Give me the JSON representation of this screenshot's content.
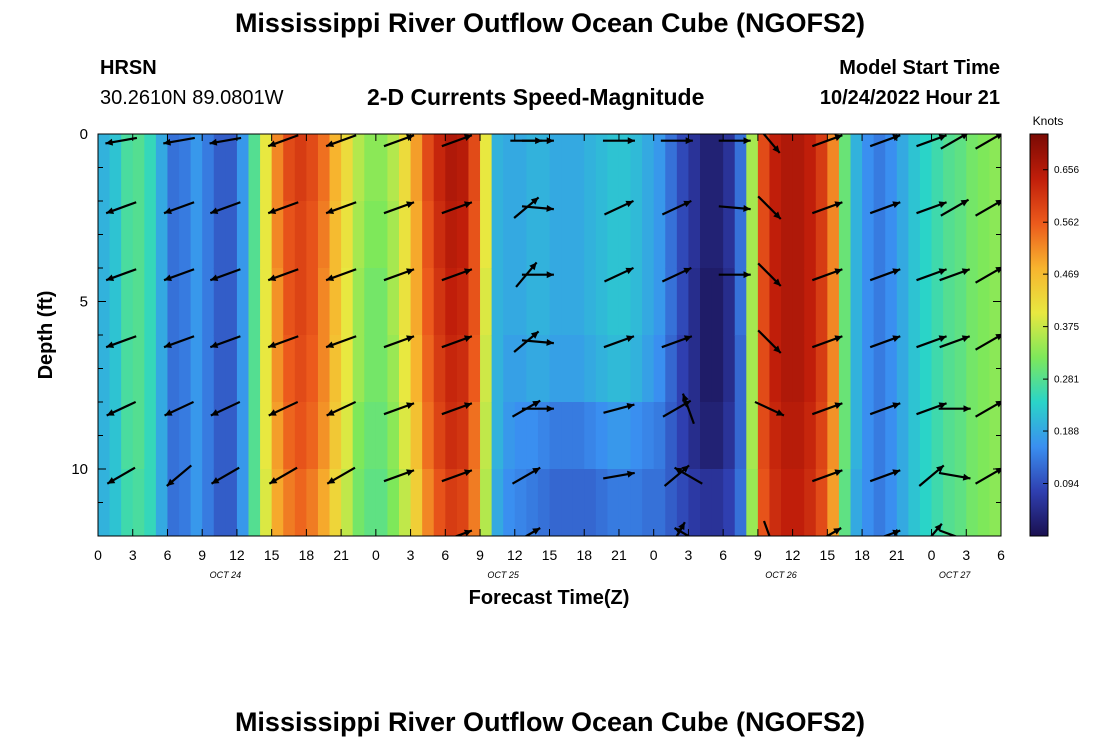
{
  "title": "Mississippi River Outflow Ocean Cube (NGOFS2)",
  "title_repeat": "Mississippi River Outflow Ocean Cube (NGOFS2)",
  "station": {
    "code": "HRSN",
    "coords": "30.2610N  89.0801W"
  },
  "model_start": {
    "label": "Model Start Time",
    "value": "10/24/2022 Hour 21"
  },
  "chart_data": {
    "type": "heatmap",
    "title": "2-D Currents Speed-Magnitude",
    "xlabel": "Forecast Time(Z)",
    "ylabel": "Depth (ft)",
    "x_range_hours": [
      0,
      78
    ],
    "y_range_ft": [
      0,
      12
    ],
    "y_invert": true,
    "x_tick_labels": [
      "0",
      "3",
      "6",
      "9",
      "12",
      "15",
      "18",
      "21",
      "0",
      "3",
      "6",
      "9",
      "12",
      "15",
      "18",
      "21",
      "0",
      "3",
      "6",
      "9",
      "12",
      "15",
      "18",
      "21",
      "0",
      "3",
      "6"
    ],
    "y_ticks": [
      0,
      5,
      10
    ],
    "y_tick_labels": [
      "0",
      "5",
      "10"
    ],
    "date_labels": [
      {
        "label": "OCT 24",
        "hour": 11
      },
      {
        "label": "OCT 25",
        "hour": 35
      },
      {
        "label": "OCT 26",
        "hour": 59
      },
      {
        "label": "OCT 27",
        "hour": 74
      }
    ],
    "colorbar": {
      "units": "Knots",
      "min": 0.0,
      "max": 0.72,
      "ticks": [
        0.094,
        0.188,
        0.281,
        0.375,
        0.469,
        0.562,
        0.656
      ],
      "tick_labels": [
        "0.094",
        "0.188",
        "0.281",
        "0.375",
        "0.469",
        "0.562",
        "0.656"
      ],
      "colors": [
        "#1a1050",
        "#2f3fb0",
        "#3a8ff0",
        "#2ad4c8",
        "#7ee85a",
        "#e8e840",
        "#f7b42e",
        "#ec5a1c",
        "#c01e0a",
        "#7a0a04"
      ]
    },
    "speed_columns": [
      {
        "hour": 0,
        "values": [
          0.2,
          0.2,
          0.2,
          0.2,
          0.2,
          0.2,
          0.2
        ]
      },
      {
        "hour": 1,
        "values": [
          0.22,
          0.22,
          0.22,
          0.22,
          0.22,
          0.22,
          0.21
        ]
      },
      {
        "hour": 2,
        "values": [
          0.27,
          0.27,
          0.27,
          0.27,
          0.27,
          0.26,
          0.26
        ]
      },
      {
        "hour": 3,
        "values": [
          0.28,
          0.28,
          0.28,
          0.28,
          0.28,
          0.27,
          0.27
        ]
      },
      {
        "hour": 4,
        "values": [
          0.25,
          0.25,
          0.25,
          0.25,
          0.25,
          0.25,
          0.24
        ]
      },
      {
        "hour": 5,
        "values": [
          0.19,
          0.19,
          0.19,
          0.19,
          0.19,
          0.19,
          0.19
        ]
      },
      {
        "hour": 6,
        "values": [
          0.13,
          0.13,
          0.13,
          0.13,
          0.13,
          0.13,
          0.13
        ]
      },
      {
        "hour": 7,
        "values": [
          0.14,
          0.14,
          0.14,
          0.14,
          0.14,
          0.14,
          0.14
        ]
      },
      {
        "hour": 8,
        "values": [
          0.17,
          0.17,
          0.17,
          0.17,
          0.17,
          0.17,
          0.17
        ]
      },
      {
        "hour": 9,
        "values": [
          0.14,
          0.14,
          0.14,
          0.14,
          0.14,
          0.14,
          0.14
        ]
      },
      {
        "hour": 10,
        "values": [
          0.11,
          0.11,
          0.11,
          0.11,
          0.11,
          0.11,
          0.11
        ]
      },
      {
        "hour": 11,
        "values": [
          0.11,
          0.11,
          0.11,
          0.11,
          0.11,
          0.11,
          0.11
        ]
      },
      {
        "hour": 12,
        "values": [
          0.17,
          0.17,
          0.17,
          0.17,
          0.17,
          0.17,
          0.17
        ]
      },
      {
        "hour": 13,
        "values": [
          0.28,
          0.28,
          0.28,
          0.28,
          0.28,
          0.28,
          0.27
        ]
      },
      {
        "hour": 14,
        "values": [
          0.4,
          0.4,
          0.4,
          0.4,
          0.4,
          0.39,
          0.38
        ]
      },
      {
        "hour": 15,
        "values": [
          0.52,
          0.52,
          0.51,
          0.51,
          0.5,
          0.49,
          0.48
        ]
      },
      {
        "hour": 16,
        "values": [
          0.58,
          0.57,
          0.57,
          0.56,
          0.55,
          0.53,
          0.52
        ]
      },
      {
        "hour": 17,
        "values": [
          0.6,
          0.59,
          0.59,
          0.58,
          0.57,
          0.55,
          0.53
        ]
      },
      {
        "hour": 18,
        "values": [
          0.58,
          0.57,
          0.57,
          0.56,
          0.55,
          0.53,
          0.51
        ]
      },
      {
        "hour": 19,
        "values": [
          0.54,
          0.53,
          0.52,
          0.52,
          0.51,
          0.49,
          0.47
        ]
      },
      {
        "hour": 20,
        "values": [
          0.48,
          0.47,
          0.47,
          0.46,
          0.45,
          0.43,
          0.42
        ]
      },
      {
        "hour": 21,
        "values": [
          0.42,
          0.41,
          0.4,
          0.4,
          0.39,
          0.37,
          0.35
        ]
      },
      {
        "hour": 22,
        "values": [
          0.36,
          0.35,
          0.34,
          0.34,
          0.32,
          0.31,
          0.3
        ]
      },
      {
        "hour": 23,
        "values": [
          0.33,
          0.32,
          0.31,
          0.31,
          0.3,
          0.29,
          0.28
        ]
      },
      {
        "hour": 24,
        "values": [
          0.33,
          0.32,
          0.31,
          0.31,
          0.3,
          0.29,
          0.28
        ]
      },
      {
        "hour": 25,
        "values": [
          0.36,
          0.35,
          0.35,
          0.34,
          0.33,
          0.32,
          0.31
        ]
      },
      {
        "hour": 26,
        "values": [
          0.42,
          0.41,
          0.41,
          0.4,
          0.39,
          0.37,
          0.36
        ]
      },
      {
        "hour": 27,
        "values": [
          0.5,
          0.49,
          0.49,
          0.48,
          0.46,
          0.44,
          0.43
        ]
      },
      {
        "hour": 28,
        "values": [
          0.58,
          0.57,
          0.56,
          0.55,
          0.54,
          0.52,
          0.5
        ]
      },
      {
        "hour": 29,
        "values": [
          0.63,
          0.62,
          0.61,
          0.6,
          0.59,
          0.57,
          0.55
        ]
      },
      {
        "hour": 30,
        "values": [
          0.66,
          0.65,
          0.64,
          0.63,
          0.62,
          0.6,
          0.58
        ]
      },
      {
        "hour": 31,
        "values": [
          0.65,
          0.64,
          0.63,
          0.62,
          0.61,
          0.59,
          0.57
        ]
      },
      {
        "hour": 32,
        "values": [
          0.58,
          0.57,
          0.57,
          0.56,
          0.54,
          0.53,
          0.51
        ]
      },
      {
        "hour": 33,
        "values": [
          0.4,
          0.4,
          0.39,
          0.38,
          0.37,
          0.36,
          0.35
        ]
      },
      {
        "hour": 34,
        "values": [
          0.2,
          0.2,
          0.2,
          0.2,
          0.2,
          0.19,
          0.18
        ]
      },
      {
        "hour": 35,
        "values": [
          0.19,
          0.19,
          0.19,
          0.18,
          0.17,
          0.16,
          0.15
        ]
      },
      {
        "hour": 36,
        "values": [
          0.19,
          0.19,
          0.19,
          0.18,
          0.16,
          0.15,
          0.14
        ]
      },
      {
        "hour": 37,
        "values": [
          0.2,
          0.2,
          0.2,
          0.19,
          0.16,
          0.14,
          0.13
        ]
      },
      {
        "hour": 38,
        "values": [
          0.2,
          0.2,
          0.2,
          0.19,
          0.15,
          0.13,
          0.12
        ]
      },
      {
        "hour": 39,
        "values": [
          0.19,
          0.19,
          0.19,
          0.18,
          0.14,
          0.12,
          0.11
        ]
      },
      {
        "hour": 40,
        "values": [
          0.19,
          0.19,
          0.19,
          0.18,
          0.14,
          0.12,
          0.11
        ]
      },
      {
        "hour": 41,
        "values": [
          0.19,
          0.19,
          0.19,
          0.18,
          0.14,
          0.12,
          0.11
        ]
      },
      {
        "hour": 42,
        "values": [
          0.2,
          0.2,
          0.2,
          0.19,
          0.15,
          0.12,
          0.11
        ]
      },
      {
        "hour": 43,
        "values": [
          0.21,
          0.21,
          0.21,
          0.2,
          0.16,
          0.13,
          0.12
        ]
      },
      {
        "hour": 44,
        "values": [
          0.22,
          0.22,
          0.22,
          0.21,
          0.17,
          0.14,
          0.13
        ]
      },
      {
        "hour": 45,
        "values": [
          0.22,
          0.22,
          0.22,
          0.21,
          0.17,
          0.14,
          0.13
        ]
      },
      {
        "hour": 46,
        "values": [
          0.21,
          0.21,
          0.21,
          0.2,
          0.16,
          0.14,
          0.13
        ]
      },
      {
        "hour": 47,
        "values": [
          0.19,
          0.19,
          0.19,
          0.18,
          0.15,
          0.13,
          0.13
        ]
      },
      {
        "hour": 48,
        "values": [
          0.17,
          0.17,
          0.17,
          0.16,
          0.14,
          0.13,
          0.13
        ]
      },
      {
        "hour": 49,
        "values": [
          0.13,
          0.13,
          0.13,
          0.12,
          0.11,
          0.11,
          0.12
        ]
      },
      {
        "hour": 50,
        "values": [
          0.09,
          0.09,
          0.09,
          0.08,
          0.08,
          0.09,
          0.11
        ]
      },
      {
        "hour": 51,
        "values": [
          0.06,
          0.06,
          0.05,
          0.05,
          0.05,
          0.07,
          0.11
        ]
      },
      {
        "hour": 52,
        "values": [
          0.03,
          0.03,
          0.02,
          0.02,
          0.03,
          0.06,
          0.1
        ]
      },
      {
        "hour": 53,
        "values": [
          0.03,
          0.03,
          0.02,
          0.02,
          0.03,
          0.06,
          0.11
        ]
      },
      {
        "hour": 54,
        "values": [
          0.06,
          0.06,
          0.05,
          0.05,
          0.06,
          0.08,
          0.12
        ]
      },
      {
        "hour": 55,
        "values": [
          0.13,
          0.13,
          0.13,
          0.12,
          0.12,
          0.13,
          0.15
        ]
      },
      {
        "hour": 56,
        "values": [
          0.35,
          0.35,
          0.35,
          0.35,
          0.35,
          0.34,
          0.33
        ]
      },
      {
        "hour": 57,
        "values": [
          0.58,
          0.58,
          0.58,
          0.58,
          0.58,
          0.57,
          0.56
        ]
      },
      {
        "hour": 58,
        "values": [
          0.64,
          0.64,
          0.64,
          0.64,
          0.63,
          0.62,
          0.61
        ]
      },
      {
        "hour": 59,
        "values": [
          0.66,
          0.66,
          0.66,
          0.66,
          0.65,
          0.64,
          0.63
        ]
      },
      {
        "hour": 60,
        "values": [
          0.66,
          0.66,
          0.66,
          0.66,
          0.65,
          0.64,
          0.63
        ]
      },
      {
        "hour": 61,
        "values": [
          0.64,
          0.64,
          0.64,
          0.64,
          0.63,
          0.62,
          0.61
        ]
      },
      {
        "hour": 62,
        "values": [
          0.6,
          0.6,
          0.6,
          0.6,
          0.59,
          0.58,
          0.57
        ]
      },
      {
        "hour": 63,
        "values": [
          0.52,
          0.52,
          0.52,
          0.52,
          0.51,
          0.5,
          0.49
        ]
      },
      {
        "hour": 64,
        "values": [
          0.3,
          0.3,
          0.3,
          0.3,
          0.3,
          0.29,
          0.28
        ]
      },
      {
        "hour": 65,
        "values": [
          0.2,
          0.2,
          0.2,
          0.2,
          0.2,
          0.19,
          0.19
        ]
      },
      {
        "hour": 66,
        "values": [
          0.16,
          0.16,
          0.16,
          0.16,
          0.16,
          0.16,
          0.16
        ]
      },
      {
        "hour": 67,
        "values": [
          0.14,
          0.14,
          0.14,
          0.14,
          0.14,
          0.14,
          0.14
        ]
      },
      {
        "hour": 68,
        "values": [
          0.16,
          0.16,
          0.16,
          0.16,
          0.16,
          0.16,
          0.16
        ]
      },
      {
        "hour": 69,
        "values": [
          0.19,
          0.19,
          0.19,
          0.19,
          0.19,
          0.19,
          0.19
        ]
      },
      {
        "hour": 70,
        "values": [
          0.22,
          0.22,
          0.22,
          0.22,
          0.22,
          0.22,
          0.22
        ]
      },
      {
        "hour": 71,
        "values": [
          0.24,
          0.24,
          0.24,
          0.24,
          0.24,
          0.24,
          0.23
        ]
      },
      {
        "hour": 72,
        "values": [
          0.26,
          0.26,
          0.26,
          0.26,
          0.26,
          0.26,
          0.25
        ]
      },
      {
        "hour": 73,
        "values": [
          0.28,
          0.28,
          0.28,
          0.28,
          0.28,
          0.28,
          0.27
        ]
      },
      {
        "hour": 74,
        "values": [
          0.29,
          0.29,
          0.29,
          0.29,
          0.29,
          0.29,
          0.28
        ]
      },
      {
        "hour": 75,
        "values": [
          0.31,
          0.31,
          0.31,
          0.31,
          0.31,
          0.31,
          0.3
        ]
      },
      {
        "hour": 76,
        "values": [
          0.32,
          0.32,
          0.32,
          0.32,
          0.32,
          0.32,
          0.31
        ]
      },
      {
        "hour": 77,
        "values": [
          0.33,
          0.33,
          0.33,
          0.33,
          0.33,
          0.33,
          0.32
        ]
      }
    ],
    "speed_depths_ft": [
      0,
      2,
      4,
      6,
      8,
      10,
      12
    ],
    "vector_depths_ft": [
      0.2,
      2.2,
      4.2,
      6.2,
      8.2,
      10.2,
      12.0
    ],
    "vectors": [
      {
        "hour": 2,
        "dirs": [
          260,
          250,
          250,
          250,
          245,
          240,
          0
        ]
      },
      {
        "hour": 7,
        "dirs": [
          260,
          250,
          250,
          250,
          245,
          230,
          0
        ]
      },
      {
        "hour": 11,
        "dirs": [
          260,
          250,
          250,
          250,
          245,
          240,
          0
        ]
      },
      {
        "hour": 16,
        "dirs": [
          250,
          250,
          250,
          250,
          245,
          240,
          0
        ]
      },
      {
        "hour": 21,
        "dirs": [
          250,
          250,
          250,
          250,
          245,
          240,
          0
        ]
      },
      {
        "hour": 26,
        "dirs": [
          70,
          70,
          70,
          70,
          70,
          70,
          0
        ]
      },
      {
        "hour": 31,
        "dirs": [
          70,
          70,
          70,
          70,
          70,
          70,
          70
        ]
      },
      {
        "hour": 37,
        "dirs": [
          90,
          50,
          40,
          50,
          60,
          60,
          60
        ]
      },
      {
        "hour": 38,
        "dirs": [
          90,
          95,
          90,
          95,
          90,
          0,
          0
        ]
      },
      {
        "hour": 45,
        "dirs": [
          90,
          65,
          65,
          70,
          75,
          80,
          0
        ]
      },
      {
        "hour": 50,
        "dirs": [
          90,
          65,
          65,
          70,
          60,
          50,
          30
        ]
      },
      {
        "hour": 51,
        "dirs": [
          0,
          0,
          0,
          0,
          340,
          300,
          300
        ]
      },
      {
        "hour": 55,
        "dirs": [
          90,
          95,
          90,
          0,
          0,
          0,
          0
        ]
      },
      {
        "hour": 58,
        "dirs": [
          140,
          135,
          135,
          135,
          115,
          0,
          160
        ]
      },
      {
        "hour": 63,
        "dirs": [
          70,
          70,
          70,
          70,
          70,
          70,
          60
        ]
      },
      {
        "hour": 68,
        "dirs": [
          70,
          70,
          70,
          70,
          70,
          70,
          70
        ]
      },
      {
        "hour": 72,
        "dirs": [
          70,
          70,
          70,
          70,
          70,
          50,
          40
        ]
      },
      {
        "hour": 74,
        "dirs": [
          60,
          60,
          70,
          70,
          90,
          100,
          110
        ]
      },
      {
        "hour": 77,
        "dirs": [
          60,
          60,
          60,
          60,
          60,
          60,
          0
        ]
      }
    ]
  }
}
